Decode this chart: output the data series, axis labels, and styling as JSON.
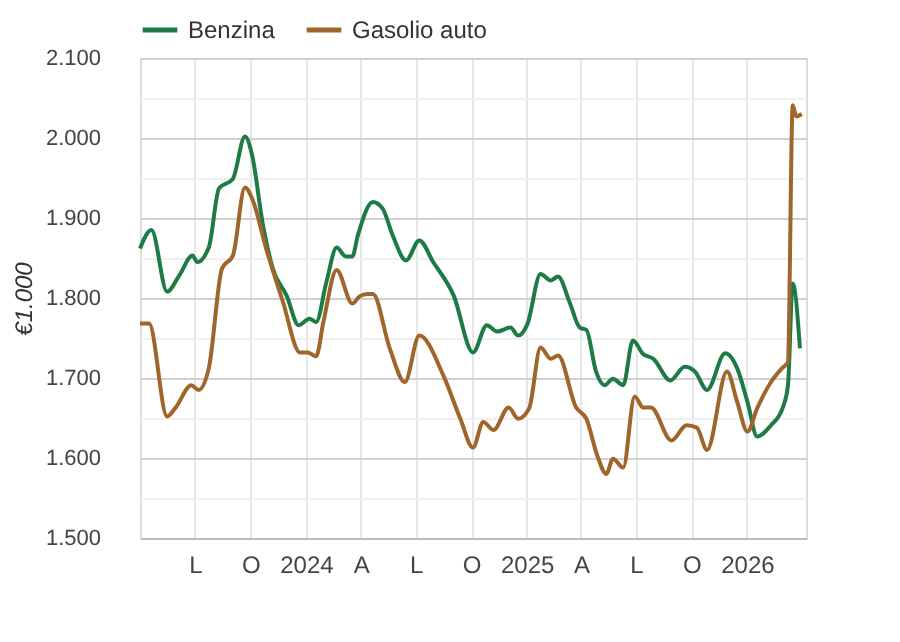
{
  "chart_data": {
    "type": "line",
    "ylabel": "€1.000",
    "xlim": [
      "2023-04-01",
      "2026-04-09"
    ],
    "xticks": [
      {
        "value": "2023-07-01",
        "label": "L"
      },
      {
        "value": "2023-10-01",
        "label": "O"
      },
      {
        "value": "2024-01-01",
        "label": "2024"
      },
      {
        "value": "2024-04-01",
        "label": "A"
      },
      {
        "value": "2024-07-01",
        "label": "L"
      },
      {
        "value": "2024-10-01",
        "label": "O"
      },
      {
        "value": "2025-01-01",
        "label": "2025"
      },
      {
        "value": "2025-04-01",
        "label": "A"
      },
      {
        "value": "2025-07-01",
        "label": "L"
      },
      {
        "value": "2025-10-01",
        "label": "O"
      },
      {
        "value": "2026-01-01",
        "label": "2026"
      }
    ],
    "ylim": [
      1500,
      2100
    ],
    "yticks": [
      {
        "value": 1500,
        "label": "1.500"
      },
      {
        "value": 1550,
        "label": null
      },
      {
        "value": 1600,
        "label": "1.600"
      },
      {
        "value": 1650,
        "label": null
      },
      {
        "value": 1700,
        "label": "1.700"
      },
      {
        "value": 1750,
        "label": null
      },
      {
        "value": 1800,
        "label": "1.800"
      },
      {
        "value": 1850,
        "label": null
      },
      {
        "value": 1900,
        "label": "1.900"
      },
      {
        "value": 1950,
        "label": null
      },
      {
        "value": 2000,
        "label": "2.000"
      },
      {
        "value": 2050,
        "label": null
      },
      {
        "value": 2100,
        "label": "2.100"
      }
    ],
    "grid": true,
    "legend": "top left",
    "marker": "none",
    "line_style": "solid",
    "series": [
      {
        "name": "Benzina",
        "color": "#1e7b45",
        "x": [
          "2023-04-01",
          "2023-04-20",
          "2023-05-16",
          "2023-06-05",
          "2023-06-27",
          "2023-07-05",
          "2023-07-24",
          "2023-08-10",
          "2023-09-02",
          "2023-09-22",
          "2023-10-04",
          "2023-10-21",
          "2023-11-07",
          "2023-11-30",
          "2023-12-20",
          "2024-01-07",
          "2024-01-18",
          "2024-02-04",
          "2024-02-21",
          "2024-03-07",
          "2024-03-18",
          "2024-03-27",
          "2024-04-21",
          "2024-05-07",
          "2024-05-24",
          "2024-06-15",
          "2024-07-07",
          "2024-07-30",
          "2024-09-02",
          "2024-10-04",
          "2024-10-27",
          "2024-11-13",
          "2024-12-05",
          "2024-12-18",
          "2025-01-02",
          "2025-01-24",
          "2025-02-10",
          "2025-02-22",
          "2025-03-13",
          "2025-03-30",
          "2025-04-10",
          "2025-04-26",
          "2025-05-10",
          "2025-05-24",
          "2025-06-10",
          "2025-06-26",
          "2025-07-13",
          "2025-07-30",
          "2025-08-27",
          "2025-09-20",
          "2025-10-07",
          "2025-10-27",
          "2025-11-26",
          "2025-12-16",
          "2026-01-02",
          "2026-01-18",
          "2026-02-10",
          "2026-03-01",
          "2026-03-10",
          "2026-03-18",
          "2026-03-30"
        ],
        "values": [
          1862,
          1885,
          1808,
          1828,
          1853,
          1845,
          1863,
          1937,
          1949,
          2002,
          1978,
          1895,
          1837,
          1803,
          1766,
          1774,
          1770,
          1820,
          1863,
          1852,
          1852,
          1878,
          1920,
          1912,
          1878,
          1847,
          1872,
          1845,
          1803,
          1732,
          1766,
          1758,
          1763,
          1753,
          1767,
          1830,
          1822,
          1827,
          1795,
          1763,
          1760,
          1708,
          1691,
          1699,
          1691,
          1747,
          1730,
          1724,
          1697,
          1714,
          1708,
          1685,
          1731,
          1712,
          1670,
          1627,
          1641,
          1662,
          1690,
          1818,
          1737
        ]
      },
      {
        "name": "Gasolio auto",
        "color": "#a0652a",
        "x": [
          "2023-04-01",
          "2023-04-16",
          "2023-05-16",
          "2023-05-30",
          "2023-06-25",
          "2023-07-07",
          "2023-07-24",
          "2023-08-15",
          "2023-09-02",
          "2023-09-22",
          "2023-10-04",
          "2023-10-27",
          "2023-11-24",
          "2023-12-22",
          "2024-01-04",
          "2024-01-18",
          "2024-01-30",
          "2024-02-21",
          "2024-03-18",
          "2024-03-30",
          "2024-04-12",
          "2024-04-21",
          "2024-05-19",
          "2024-06-13",
          "2024-07-07",
          "2024-08-16",
          "2024-09-13",
          "2024-10-04",
          "2024-10-21",
          "2024-11-07",
          "2024-12-02",
          "2024-12-18",
          "2025-01-05",
          "2025-01-24",
          "2025-02-10",
          "2025-02-22",
          "2025-03-24",
          "2025-04-10",
          "2025-04-28",
          "2025-05-13",
          "2025-05-24",
          "2025-06-10",
          "2025-06-29",
          "2025-07-13",
          "2025-07-26",
          "2025-08-29",
          "2025-09-23",
          "2025-10-10",
          "2025-10-27",
          "2025-11-29",
          "2025-12-16",
          "2026-01-02",
          "2026-01-18",
          "2026-02-10",
          "2026-02-28",
          "2026-03-10",
          "2026-03-18",
          "2026-03-24",
          "2026-04-02"
        ],
        "values": [
          1768,
          1768,
          1652,
          1663,
          1691,
          1685,
          1712,
          1837,
          1853,
          1938,
          1924,
          1862,
          1795,
          1732,
          1732,
          1727,
          1770,
          1835,
          1793,
          1802,
          1805,
          1805,
          1737,
          1695,
          1753,
          1703,
          1649,
          1613,
          1645,
          1635,
          1663,
          1649,
          1662,
          1738,
          1724,
          1728,
          1663,
          1649,
          1603,
          1580,
          1599,
          1588,
          1677,
          1663,
          1663,
          1622,
          1641,
          1638,
          1610,
          1708,
          1670,
          1633,
          1662,
          1695,
          1712,
          1720,
          2041,
          2027,
          2030
        ]
      }
    ]
  }
}
